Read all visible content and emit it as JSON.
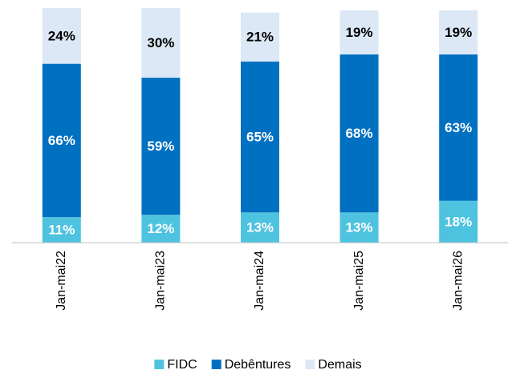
{
  "chart_data": {
    "type": "stacked_bar",
    "categories": [
      "Jan-mai22",
      "Jan-mai23",
      "Jan-mai24",
      "Jan-mai25",
      "Jan-mai26"
    ],
    "series": [
      {
        "name": "FIDC",
        "color": "#4ec3e0",
        "values": [
          11,
          12,
          13,
          13,
          18
        ],
        "value_labels": [
          "11%",
          "12%",
          "13%",
          "13%",
          "18%"
        ]
      },
      {
        "name": "Debêntures",
        "color": "#0070c0",
        "values": [
          66,
          59,
          65,
          68,
          63
        ],
        "value_labels": [
          "66%",
          "59%",
          "65%",
          "68%",
          "63%"
        ]
      },
      {
        "name": "Demais",
        "color": "#dce8f5",
        "values": [
          24,
          30,
          21,
          19,
          19
        ],
        "value_labels": [
          "24%",
          "30%",
          "21%",
          "19%",
          "19%"
        ]
      }
    ],
    "ylim": [
      0,
      101
    ],
    "legend": "bottom"
  }
}
